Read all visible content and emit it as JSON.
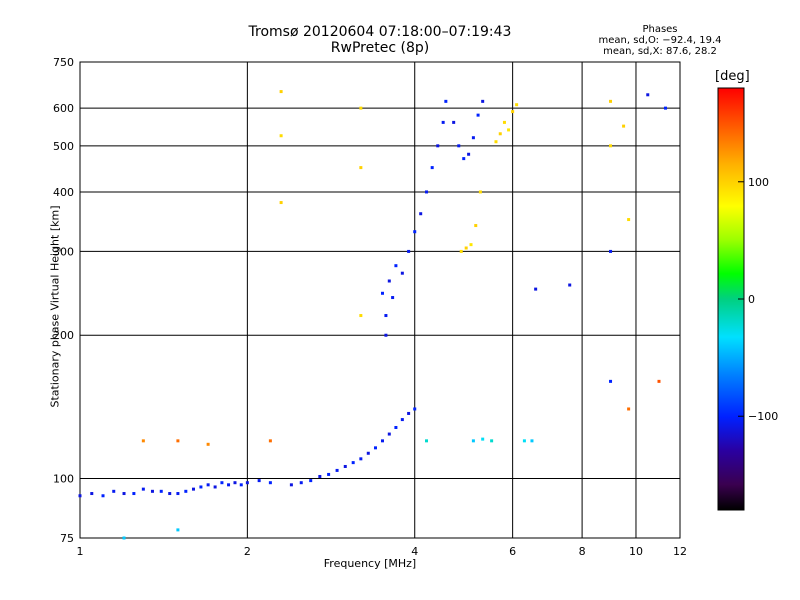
{
  "header": {
    "title_line1": "Tromsø 20120604 07:18:00–07:19:43",
    "title_line2": "RwPretec (8p)",
    "phases_heading": "Phases",
    "phases_line1": "mean, sd,O: −92.4, 19.4",
    "phases_line2": "mean, sd,X: 87.6, 28.2"
  },
  "colorbar": {
    "unit": "[deg]",
    "ticks": [
      {
        "value": 100,
        "label": "100"
      },
      {
        "value": 0,
        "label": "0"
      },
      {
        "value": -100,
        "label": "−100"
      }
    ]
  },
  "chart_data": {
    "type": "scatter",
    "title": "Tromsø 20120604 07:18:00–07:19:43",
    "subtitle": "RwPretec (8p)",
    "xlabel": "Frequency [MHz]",
    "ylabel": "Stationary phase Virtual Height [km]",
    "xscale": "log",
    "yscale": "log",
    "xlim": [
      1,
      12
    ],
    "ylim": [
      75,
      750
    ],
    "xticks": [
      1,
      2,
      4,
      6,
      8,
      10,
      12
    ],
    "yticks": [
      75,
      100,
      200,
      300,
      400,
      500,
      600,
      750
    ],
    "grid_x": [
      2,
      4,
      6,
      8,
      10
    ],
    "grid_y": [
      100,
      200,
      300,
      400,
      500,
      600
    ],
    "color_scale": {
      "label": "[deg]",
      "range": [
        -180,
        180
      ]
    },
    "series": [
      {
        "points": [
          {
            "x": 1.0,
            "y": 92,
            "phase": -110
          },
          {
            "x": 1.05,
            "y": 93,
            "phase": -110
          },
          {
            "x": 1.1,
            "y": 92,
            "phase": -100
          },
          {
            "x": 1.15,
            "y": 94,
            "phase": -105
          },
          {
            "x": 1.2,
            "y": 93,
            "phase": -110
          },
          {
            "x": 1.25,
            "y": 93,
            "phase": -100
          },
          {
            "x": 1.3,
            "y": 95,
            "phase": -105
          },
          {
            "x": 1.35,
            "y": 94,
            "phase": -110
          },
          {
            "x": 1.4,
            "y": 94,
            "phase": -100
          },
          {
            "x": 1.45,
            "y": 93,
            "phase": -110
          },
          {
            "x": 1.5,
            "y": 93,
            "phase": -105
          },
          {
            "x": 1.55,
            "y": 94,
            "phase": -100
          },
          {
            "x": 1.6,
            "y": 95,
            "phase": -110
          },
          {
            "x": 1.65,
            "y": 96,
            "phase": -100
          },
          {
            "x": 1.7,
            "y": 97,
            "phase": -105
          },
          {
            "x": 1.75,
            "y": 96,
            "phase": -110
          },
          {
            "x": 1.8,
            "y": 98,
            "phase": -100
          },
          {
            "x": 1.85,
            "y": 97,
            "phase": -105
          },
          {
            "x": 1.9,
            "y": 98,
            "phase": -110
          },
          {
            "x": 1.95,
            "y": 97,
            "phase": -100
          },
          {
            "x": 2.0,
            "y": 98,
            "phase": -110
          },
          {
            "x": 2.1,
            "y": 99,
            "phase": -105
          },
          {
            "x": 2.2,
            "y": 98,
            "phase": -100
          },
          {
            "x": 2.4,
            "y": 97,
            "phase": -110
          },
          {
            "x": 2.5,
            "y": 98,
            "phase": -105
          },
          {
            "x": 2.6,
            "y": 99,
            "phase": -100
          },
          {
            "x": 2.7,
            "y": 101,
            "phase": -110
          },
          {
            "x": 2.8,
            "y": 102,
            "phase": -100
          },
          {
            "x": 2.9,
            "y": 104,
            "phase": -105
          },
          {
            "x": 3.0,
            "y": 106,
            "phase": -110
          },
          {
            "x": 3.1,
            "y": 108,
            "phase": -100
          },
          {
            "x": 3.2,
            "y": 110,
            "phase": -105
          },
          {
            "x": 3.3,
            "y": 113,
            "phase": -110
          },
          {
            "x": 3.4,
            "y": 116,
            "phase": -100
          },
          {
            "x": 3.5,
            "y": 120,
            "phase": -105
          },
          {
            "x": 3.6,
            "y": 124,
            "phase": -110
          },
          {
            "x": 3.7,
            "y": 128,
            "phase": -100
          },
          {
            "x": 3.8,
            "y": 133,
            "phase": -105
          },
          {
            "x": 3.9,
            "y": 137,
            "phase": -110
          },
          {
            "x": 4.0,
            "y": 140,
            "phase": -100
          },
          {
            "x": 3.55,
            "y": 200,
            "phase": -110
          },
          {
            "x": 3.55,
            "y": 220,
            "phase": -105
          },
          {
            "x": 3.5,
            "y": 245,
            "phase": -100
          },
          {
            "x": 3.6,
            "y": 260,
            "phase": -110
          },
          {
            "x": 3.65,
            "y": 240,
            "phase": -105
          },
          {
            "x": 3.7,
            "y": 280,
            "phase": -100
          },
          {
            "x": 3.8,
            "y": 270,
            "phase": -110
          },
          {
            "x": 3.9,
            "y": 300,
            "phase": -105
          },
          {
            "x": 4.0,
            "y": 330,
            "phase": -100
          },
          {
            "x": 4.1,
            "y": 360,
            "phase": -110
          },
          {
            "x": 4.2,
            "y": 400,
            "phase": -105
          },
          {
            "x": 4.3,
            "y": 450,
            "phase": -100
          },
          {
            "x": 4.4,
            "y": 500,
            "phase": -110
          },
          {
            "x": 4.5,
            "y": 560,
            "phase": -105
          },
          {
            "x": 4.55,
            "y": 620,
            "phase": -100
          },
          {
            "x": 4.7,
            "y": 560,
            "phase": -110
          },
          {
            "x": 4.8,
            "y": 500,
            "phase": -105
          },
          {
            "x": 4.9,
            "y": 470,
            "phase": -100
          },
          {
            "x": 5.0,
            "y": 480,
            "phase": -110
          },
          {
            "x": 5.1,
            "y": 520,
            "phase": -105
          },
          {
            "x": 5.2,
            "y": 580,
            "phase": -100
          },
          {
            "x": 5.3,
            "y": 620,
            "phase": -110
          },
          {
            "x": 5.6,
            "y": 510,
            "phase": 95
          },
          {
            "x": 5.7,
            "y": 530,
            "phase": 100
          },
          {
            "x": 5.8,
            "y": 560,
            "phase": 95
          },
          {
            "x": 5.9,
            "y": 540,
            "phase": 90
          },
          {
            "x": 6.0,
            "y": 590,
            "phase": 100
          },
          {
            "x": 6.1,
            "y": 610,
            "phase": 95
          },
          {
            "x": 4.85,
            "y": 300,
            "phase": 95
          },
          {
            "x": 4.95,
            "y": 305,
            "phase": 100
          },
          {
            "x": 5.05,
            "y": 310,
            "phase": 90
          },
          {
            "x": 5.15,
            "y": 340,
            "phase": 100
          },
          {
            "x": 5.25,
            "y": 400,
            "phase": 95
          },
          {
            "x": 5.1,
            "y": 120,
            "phase": -40
          },
          {
            "x": 5.3,
            "y": 121,
            "phase": -30
          },
          {
            "x": 5.5,
            "y": 120,
            "phase": -20
          },
          {
            "x": 6.3,
            "y": 120,
            "phase": -30
          },
          {
            "x": 6.5,
            "y": 120,
            "phase": -40
          },
          {
            "x": 4.2,
            "y": 120,
            "phase": -20
          },
          {
            "x": 1.3,
            "y": 120,
            "phase": 130
          },
          {
            "x": 1.5,
            "y": 120,
            "phase": 140
          },
          {
            "x": 1.7,
            "y": 118,
            "phase": 130
          },
          {
            "x": 2.2,
            "y": 120,
            "phase": 140
          },
          {
            "x": 2.3,
            "y": 650,
            "phase": 100
          },
          {
            "x": 2.3,
            "y": 525,
            "phase": 95
          },
          {
            "x": 2.3,
            "y": 380,
            "phase": 100
          },
          {
            "x": 3.2,
            "y": 600,
            "phase": 95
          },
          {
            "x": 3.2,
            "y": 450,
            "phase": 100
          },
          {
            "x": 3.2,
            "y": 220,
            "phase": 95
          },
          {
            "x": 9.0,
            "y": 620,
            "phase": 100
          },
          {
            "x": 9.0,
            "y": 500,
            "phase": 95
          },
          {
            "x": 9.5,
            "y": 550,
            "phase": 100
          },
          {
            "x": 9.7,
            "y": 350,
            "phase": 95
          },
          {
            "x": 10.5,
            "y": 640,
            "phase": -110
          },
          {
            "x": 11.3,
            "y": 600,
            "phase": -100
          },
          {
            "x": 11.0,
            "y": 160,
            "phase": 150
          },
          {
            "x": 9.7,
            "y": 140,
            "phase": 140
          },
          {
            "x": 9.0,
            "y": 300,
            "phase": -105
          },
          {
            "x": 9.0,
            "y": 160,
            "phase": -100
          },
          {
            "x": 6.6,
            "y": 250,
            "phase": -110
          },
          {
            "x": 7.6,
            "y": 255,
            "phase": -110
          },
          {
            "x": 1.2,
            "y": 75,
            "phase": -40
          },
          {
            "x": 1.5,
            "y": 78,
            "phase": -40
          }
        ]
      }
    ]
  }
}
